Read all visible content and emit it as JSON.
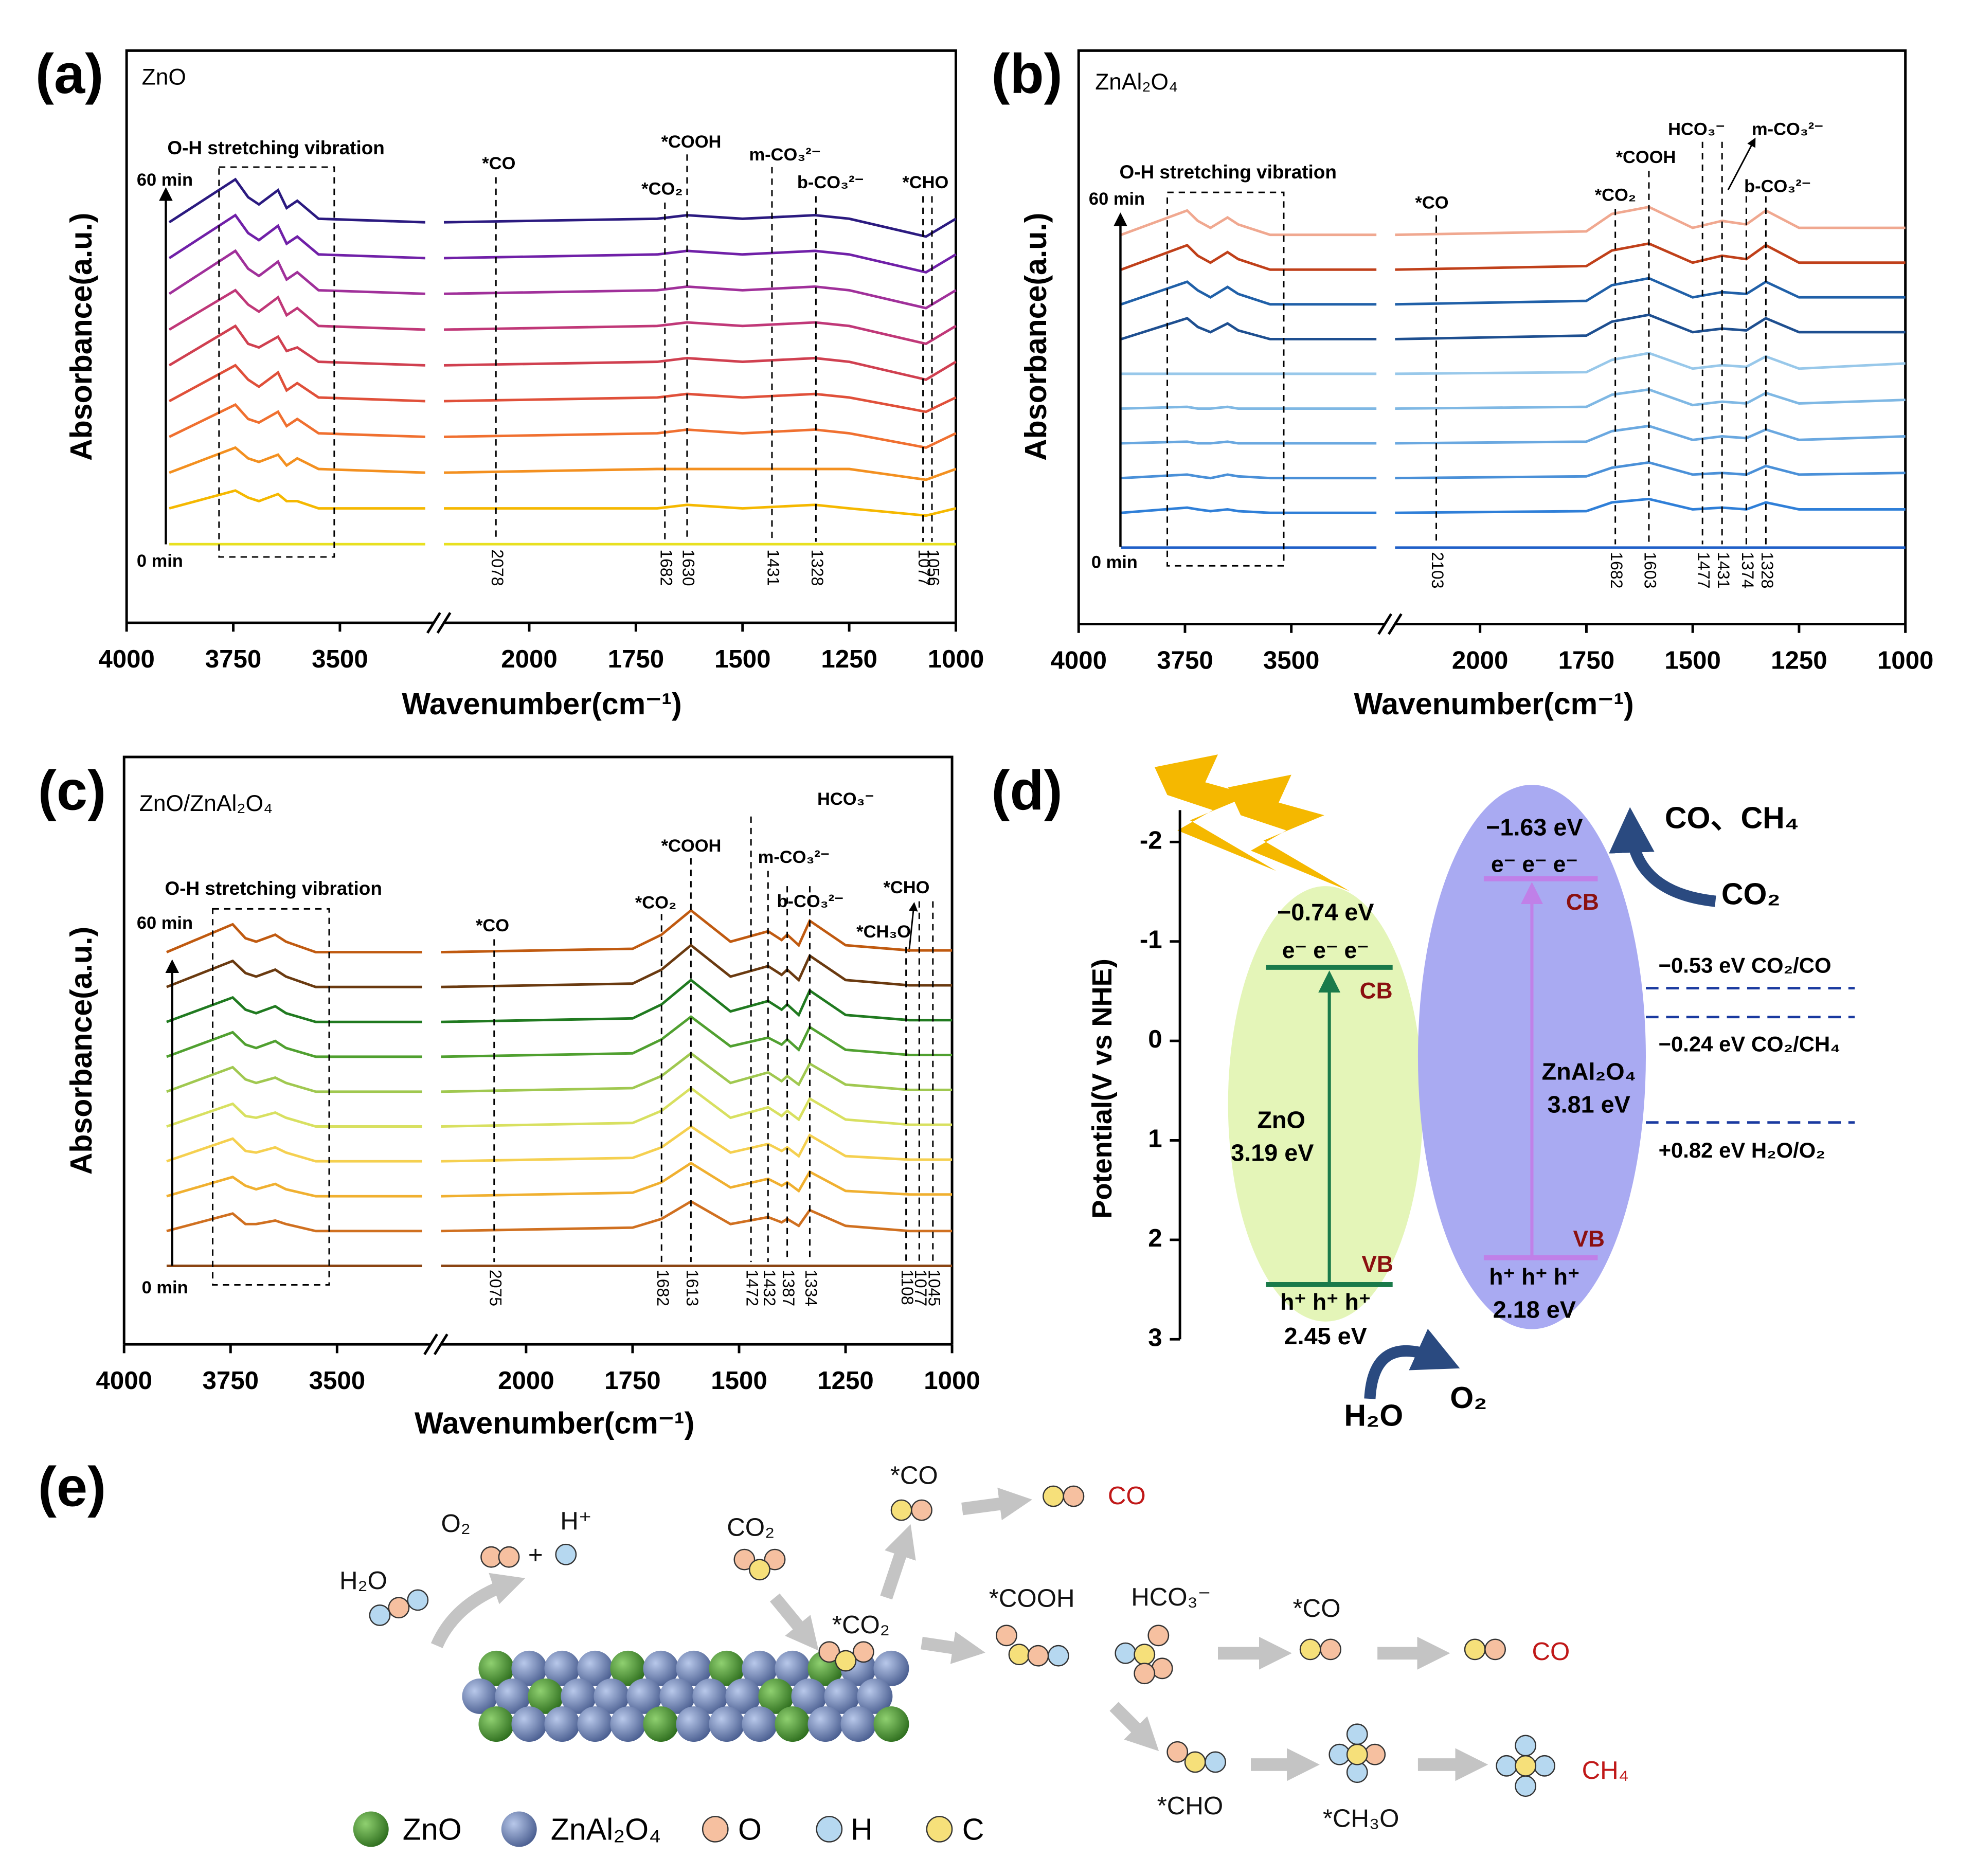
{
  "chart_data": [
    {
      "type": "line",
      "panel_label": "(a)",
      "sample": "ZnO",
      "xlabel": "Wavenumber(cm⁻¹)",
      "ylabel": "Absorbance(a.u.)",
      "xlim": [
        4000,
        1000
      ],
      "x_break": [
        3280,
        2200
      ],
      "xticks": [
        4000,
        3750,
        3500,
        2000,
        1750,
        1500,
        1250,
        1000
      ],
      "ylim": [
        -2.2,
        13.8
      ],
      "time_start": "0 min",
      "time_end": "60 min",
      "box_label": "O-H stretching vibration",
      "peak_lines": [
        2078,
        1682,
        1630,
        1431,
        1328,
        1077,
        1056
      ],
      "species": [
        "*CO",
        "*CO₂",
        "*COOH",
        "m-CO₃²⁻",
        "b-CO₃²⁻",
        "*CHO"
      ],
      "x": [
        3900,
        3745,
        3715,
        3690,
        3645,
        3625,
        3600,
        3550,
        3300,
        2200,
        1700,
        1630,
        1500,
        1330,
        1250,
        1070,
        1000
      ],
      "series": [
        {
          "color": "#e8e020",
          "values": [
            0,
            0,
            0,
            0,
            0,
            0,
            0,
            0,
            0,
            0,
            0,
            0,
            0,
            0,
            0,
            0,
            0
          ]
        },
        {
          "color": "#f5b800",
          "values": [
            1,
            1.5,
            1.3,
            1.2,
            1.4,
            1.2,
            1.2,
            1,
            1,
            1,
            1,
            1.1,
            1,
            1.1,
            1,
            0.8,
            1
          ]
        },
        {
          "color": "#f39020",
          "values": [
            2,
            2.7,
            2.4,
            2.3,
            2.5,
            2.2,
            2.4,
            2.1,
            2,
            2,
            2.1,
            2.1,
            2.1,
            2.1,
            2.1,
            1.8,
            2.1
          ]
        },
        {
          "color": "#f07030",
          "values": [
            3,
            3.9,
            3.5,
            3.4,
            3.7,
            3.3,
            3.5,
            3.1,
            3,
            3,
            3.1,
            3.2,
            3.1,
            3.2,
            3.1,
            2.7,
            3.1
          ]
        },
        {
          "color": "#e0503a",
          "values": [
            4,
            5,
            4.6,
            4.4,
            4.8,
            4.3,
            4.5,
            4.1,
            4,
            4,
            4.1,
            4.2,
            4.1,
            4.2,
            4.1,
            3.7,
            4.1
          ]
        },
        {
          "color": "#d04050",
          "values": [
            5,
            6.1,
            5.6,
            5.5,
            5.8,
            5.4,
            5.5,
            5.1,
            5,
            5,
            5.1,
            5.2,
            5.1,
            5.2,
            5.1,
            4.6,
            5.1
          ]
        },
        {
          "color": "#c03878",
          "values": [
            6,
            7.1,
            6.7,
            6.5,
            6.9,
            6.4,
            6.6,
            6.1,
            6,
            6,
            6.1,
            6.2,
            6.1,
            6.2,
            6.1,
            5.6,
            6.1
          ]
        },
        {
          "color": "#a0309a",
          "values": [
            7,
            8.2,
            7.7,
            7.5,
            7.9,
            7.4,
            7.6,
            7.1,
            7,
            7,
            7.1,
            7.2,
            7.1,
            7.2,
            7.1,
            6.6,
            7.1
          ]
        },
        {
          "color": "#7020a8",
          "values": [
            8,
            9.2,
            8.7,
            8.5,
            8.9,
            8.4,
            8.6,
            8.1,
            8,
            8,
            8.1,
            8.2,
            8.1,
            8.2,
            8.1,
            7.6,
            8.1
          ]
        },
        {
          "color": "#2b1a80",
          "values": [
            9,
            10.2,
            9.7,
            9.5,
            9.9,
            9.4,
            9.6,
            9.1,
            9,
            9,
            9.1,
            9.2,
            9.1,
            9.2,
            9.1,
            8.6,
            9.1
          ]
        }
      ]
    },
    {
      "type": "line",
      "panel_label": "(b)",
      "sample": "ZnAl₂O₄",
      "xlabel": "Wavenumber(cm⁻¹)",
      "ylabel": "Absorbance(a.u.)",
      "xlim": [
        4000,
        1000
      ],
      "x_break": [
        3280,
        2200
      ],
      "xticks": [
        4000,
        3750,
        3500,
        2000,
        1750,
        1500,
        1250,
        1000
      ],
      "ylim": [
        -2.2,
        14.3
      ],
      "time_start": "0 min",
      "time_end": "60 min",
      "box_label": "O-H stretching vibration",
      "peak_lines": [
        2103,
        1682,
        1603,
        1477,
        1431,
        1374,
        1328
      ],
      "species": [
        "*CO",
        "*CO₂",
        "*COOH",
        "HCO₃⁻",
        "m-CO₃²⁻",
        "b-CO₃²⁻"
      ],
      "x": [
        3900,
        3745,
        3720,
        3690,
        3650,
        3625,
        3550,
        3300,
        2200,
        1750,
        1690,
        1603,
        1500,
        1431,
        1374,
        1328,
        1250,
        1000
      ],
      "series": [
        {
          "color": "#1f5fc8",
          "values": [
            0,
            0,
            0,
            0,
            0,
            0,
            0,
            0,
            0,
            0,
            0,
            0,
            0,
            0,
            0,
            0,
            0,
            0
          ]
        },
        {
          "color": "#2f7fd8",
          "values": [
            1,
            1.15,
            1.1,
            1.05,
            1.1,
            1.05,
            1,
            1,
            1,
            1.05,
            1.3,
            1.4,
            1.1,
            1.15,
            1.1,
            1.3,
            1.1,
            1.1
          ]
        },
        {
          "color": "#4a90d8",
          "values": [
            2,
            2.1,
            2.05,
            2,
            2.1,
            2.05,
            2,
            2,
            2,
            2.05,
            2.3,
            2.45,
            2.1,
            2.15,
            2.1,
            2.35,
            2.1,
            2.15
          ]
        },
        {
          "color": "#6aa8e0",
          "values": [
            3,
            3.05,
            3,
            3,
            3.05,
            3,
            3,
            3,
            3,
            3.05,
            3.35,
            3.5,
            3.1,
            3.2,
            3.15,
            3.4,
            3.1,
            3.2
          ]
        },
        {
          "color": "#7fb8e4",
          "values": [
            4,
            4.05,
            4,
            4,
            4.05,
            4,
            4,
            4,
            4,
            4.05,
            4.4,
            4.55,
            4.1,
            4.2,
            4.15,
            4.45,
            4.15,
            4.25
          ]
        },
        {
          "color": "#98c8ea",
          "values": [
            5,
            5,
            5,
            5,
            5,
            5,
            5,
            5,
            5,
            5.05,
            5.4,
            5.6,
            5.15,
            5.25,
            5.2,
            5.5,
            5.15,
            5.3
          ]
        },
        {
          "color": "#1e4f90",
          "values": [
            6,
            6.6,
            6.35,
            6.2,
            6.45,
            6.25,
            6,
            6,
            6,
            6.1,
            6.5,
            6.7,
            6.2,
            6.3,
            6.25,
            6.6,
            6.2,
            6.2
          ]
        },
        {
          "color": "#2060a8",
          "values": [
            7,
            7.65,
            7.4,
            7.2,
            7.5,
            7.3,
            7,
            7,
            7,
            7.1,
            7.55,
            7.75,
            7.2,
            7.35,
            7.3,
            7.65,
            7.2,
            7.2
          ]
        },
        {
          "color": "#c0401a",
          "values": [
            8,
            8.7,
            8.4,
            8.2,
            8.5,
            8.3,
            8,
            8,
            8,
            8.1,
            8.55,
            8.75,
            8.2,
            8.4,
            8.3,
            8.7,
            8.2,
            8.2
          ]
        },
        {
          "color": "#f0a890",
          "values": [
            9,
            9.7,
            9.4,
            9.2,
            9.5,
            9.3,
            9,
            9,
            9,
            9.1,
            9.6,
            9.8,
            9.2,
            9.4,
            9.3,
            9.7,
            9.2,
            9.2
          ]
        }
      ]
    },
    {
      "type": "line",
      "panel_label": "(c)",
      "sample": "ZnO/ZnAl₂O₄",
      "xlabel": "Wavenumber(cm⁻¹)",
      "ylabel": "Absorbance(a.u.)",
      "xlim": [
        4000,
        1000
      ],
      "x_break": [
        3280,
        2200
      ],
      "xticks": [
        4000,
        3750,
        3500,
        2000,
        1750,
        1500,
        1250,
        1000
      ],
      "ylim": [
        -2.25,
        14.6
      ],
      "time_start": "0 min",
      "time_end": "60 min",
      "box_label": "O-H stretching vibration",
      "peak_lines": [
        2075,
        1682,
        1613,
        1472,
        1432,
        1387,
        1334,
        1108,
        1077,
        1045
      ],
      "species": [
        "*CO",
        "*CO₂",
        "*COOH",
        "m-CO₃²⁻",
        "b-CO₃²⁻",
        "HCO₃⁻",
        "*CHO",
        "*CH₃O"
      ],
      "x": [
        3900,
        3745,
        3715,
        3690,
        3645,
        3620,
        3550,
        3300,
        2200,
        1750,
        1682,
        1613,
        1520,
        1432,
        1400,
        1387,
        1360,
        1334,
        1250,
        1100,
        1000
      ],
      "series": [
        {
          "color": "#8b4513",
          "values": [
            0,
            0,
            0,
            0,
            0,
            0,
            0,
            0,
            0,
            0,
            0,
            0,
            0,
            0,
            0,
            0,
            0,
            0,
            0,
            0,
            0
          ]
        },
        {
          "color": "#d07020",
          "values": [
            1,
            1.5,
            1.2,
            1.2,
            1.3,
            1.2,
            1,
            1,
            1,
            1.1,
            1.35,
            1.85,
            1.2,
            1.4,
            1.25,
            1.35,
            1.15,
            1.6,
            1.15,
            1,
            1
          ]
        },
        {
          "color": "#f0b030",
          "values": [
            2,
            2.55,
            2.3,
            2.2,
            2.35,
            2.2,
            2,
            2,
            2,
            2.1,
            2.4,
            2.95,
            2.25,
            2.5,
            2.3,
            2.4,
            2.15,
            2.7,
            2.15,
            2.05,
            2.05
          ]
        },
        {
          "color": "#f5d050",
          "values": [
            3,
            3.65,
            3.3,
            3.25,
            3.4,
            3.25,
            3,
            3,
            3,
            3.1,
            3.4,
            4,
            3.25,
            3.5,
            3.3,
            3.4,
            3.15,
            3.75,
            3.15,
            3.05,
            3.05
          ]
        },
        {
          "color": "#d8e060",
          "values": [
            4,
            4.65,
            4.3,
            4.25,
            4.4,
            4.25,
            4,
            4,
            4,
            4.1,
            4.45,
            5.1,
            4.25,
            4.55,
            4.3,
            4.45,
            4.2,
            4.8,
            4.2,
            4.05,
            4.05
          ]
        },
        {
          "color": "#a0c850",
          "values": [
            5,
            5.7,
            5.35,
            5.25,
            5.4,
            5.25,
            5,
            5,
            5,
            5.1,
            5.45,
            6.1,
            5.25,
            5.55,
            5.3,
            5.45,
            5.2,
            5.8,
            5.2,
            5.05,
            5.05
          ]
        },
        {
          "color": "#50a030",
          "values": [
            6,
            6.7,
            6.35,
            6.25,
            6.45,
            6.25,
            6,
            6,
            6,
            6.1,
            6.5,
            7.15,
            6.3,
            6.55,
            6.35,
            6.5,
            6.2,
            6.85,
            6.2,
            6.05,
            6.05
          ]
        },
        {
          "color": "#207a20",
          "values": [
            7,
            7.7,
            7.35,
            7.25,
            7.45,
            7.25,
            7,
            7,
            7,
            7.1,
            7.5,
            8.2,
            7.3,
            7.6,
            7.35,
            7.5,
            7.2,
            7.9,
            7.2,
            7.05,
            7.05
          ]
        },
        {
          "color": "#6a3a10",
          "values": [
            8,
            8.75,
            8.4,
            8.3,
            8.5,
            8.3,
            8,
            8,
            8,
            8.1,
            8.5,
            9.2,
            8.3,
            8.6,
            8.35,
            8.5,
            8.2,
            8.9,
            8.2,
            8.05,
            8.05
          ]
        },
        {
          "color": "#c05a10",
          "values": [
            9,
            9.8,
            9.4,
            9.3,
            9.5,
            9.3,
            9,
            9,
            9,
            9.1,
            9.5,
            10.2,
            9.3,
            9.6,
            9.35,
            9.5,
            9.2,
            9.9,
            9.2,
            9.05,
            9.05
          ]
        }
      ]
    },
    {
      "type": "band",
      "panel_label": "(d)",
      "ylabel": "Potential(V vs NHE)",
      "ylim": [
        -2.32,
        3
      ],
      "yticks": [
        -2,
        -1,
        0,
        1,
        2,
        3
      ],
      "materials": [
        {
          "name": "ZnO",
          "gap_label": "3.19 eV",
          "cb": -0.74,
          "cb_label": "−0.74 eV",
          "vb": 2.45,
          "vb_label": "2.45 eV",
          "electrons": "e⁻ e⁻ e⁻",
          "holes": "h⁺ h⁺ h⁺",
          "cb_name": "CB",
          "vb_name": "VB",
          "color": "#1a7a4a",
          "fill": "#e4f5b8"
        },
        {
          "name": "ZnAl₂O₄",
          "gap_label": "3.81 eV",
          "cb": -1.63,
          "cb_label": "−1.63 eV",
          "vb": 2.18,
          "vb_label": "2.18 eV",
          "electrons": "e⁻ e⁻ e⁻",
          "holes": "h⁺ h⁺ h⁺",
          "cb_name": "CB",
          "vb_name": "VB",
          "color": "#c080e8",
          "fill": "#a9aaf2"
        }
      ],
      "references": [
        {
          "value": -0.53,
          "label": "−0.53 eV CO₂/CO"
        },
        {
          "value": -0.24,
          "label": "−0.24 eV CO₂/CH₄"
        },
        {
          "value": 0.82,
          "label": "+0.82 eV H₂O/O₂"
        }
      ],
      "ref_color": "#1a3aa0",
      "species": [
        "CO、CH₄",
        "CO₂",
        "H₂O",
        "O₂"
      ]
    }
  ],
  "scheme": {
    "panel_label": "(e)",
    "labels": [
      "O₂",
      "+",
      "H⁺",
      "H₂O",
      "CO₂",
      "*CO₂",
      "*CO",
      "CO",
      "*COOH",
      "HCO₃⁻",
      "*CO",
      "CO",
      "*CHO",
      "*CH₃O",
      "CH₄"
    ],
    "legend": [
      "ZnO",
      "ZnAl₂O₄",
      "O",
      "H",
      "C"
    ]
  }
}
